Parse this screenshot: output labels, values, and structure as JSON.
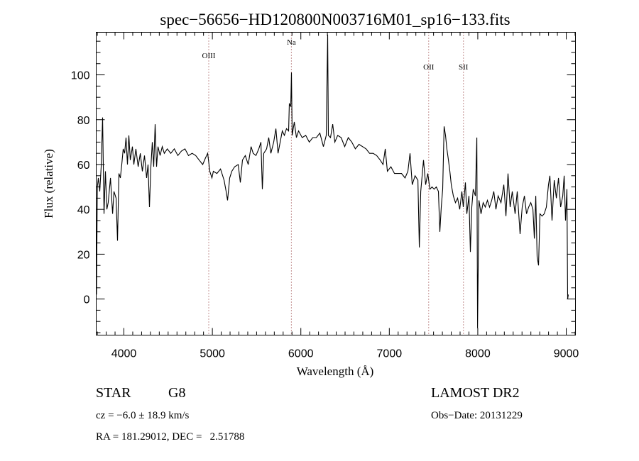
{
  "chart_data": {
    "type": "line",
    "title": "spec−56656−HD120800N003716M01_sp16−133.fits",
    "xlabel": "Wavelength (Å)",
    "ylabel": "Flux (relative)",
    "xlim": [
      3687,
      9104
    ],
    "ylim": [
      -16.1,
      119
    ],
    "xticks": [
      4000,
      5000,
      6000,
      7000,
      8000,
      9000
    ],
    "xtick_labels": [
      "4000",
      "5000",
      "6000",
      "7000",
      "8000",
      "9000"
    ],
    "yticks": [
      0,
      20,
      40,
      60,
      80,
      100
    ],
    "ytick_labels": [
      "0",
      "20",
      "40",
      "60",
      "80",
      "100"
    ],
    "grid": false,
    "lines": [
      {
        "label": "OIII",
        "wavelength": 4959
      },
      {
        "label": "Na",
        "wavelength": 5893
      },
      {
        "label": "OII",
        "wavelength": 7445
      },
      {
        "label": "SII",
        "wavelength": 7838
      }
    ],
    "line_marker_color": "#8b2a2a",
    "series": [
      {
        "name": "flux",
        "color": "#000000",
        "points": [
          [
            3690,
            2
          ],
          [
            3700,
            50
          ],
          [
            3711,
            54
          ],
          [
            3727,
            48
          ],
          [
            3743,
            59
          ],
          [
            3759,
            81
          ],
          [
            3775,
            38
          ],
          [
            3791,
            57
          ],
          [
            3807,
            40
          ],
          [
            3823,
            43
          ],
          [
            3848,
            54
          ],
          [
            3872,
            38
          ],
          [
            3888,
            48
          ],
          [
            3912,
            45
          ],
          [
            3928,
            26
          ],
          [
            3944,
            56
          ],
          [
            3960,
            54
          ],
          [
            3976,
            60
          ],
          [
            3992,
            67
          ],
          [
            4008,
            65
          ],
          [
            4024,
            72
          ],
          [
            4040,
            60
          ],
          [
            4056,
            73
          ],
          [
            4072,
            62
          ],
          [
            4096,
            68
          ],
          [
            4112,
            60
          ],
          [
            4136,
            67
          ],
          [
            4161,
            59
          ],
          [
            4185,
            65
          ],
          [
            4209,
            57
          ],
          [
            4233,
            64
          ],
          [
            4257,
            54
          ],
          [
            4273,
            60
          ],
          [
            4289,
            41
          ],
          [
            4305,
            59
          ],
          [
            4321,
            70
          ],
          [
            4337,
            59
          ],
          [
            4353,
            78
          ],
          [
            4369,
            59
          ],
          [
            4385,
            68
          ],
          [
            4409,
            64
          ],
          [
            4433,
            68
          ],
          [
            4457,
            65
          ],
          [
            4490,
            67
          ],
          [
            4530,
            65
          ],
          [
            4570,
            67
          ],
          [
            4610,
            64
          ],
          [
            4650,
            66
          ],
          [
            4690,
            67
          ],
          [
            4730,
            64
          ],
          [
            4771,
            65
          ],
          [
            4811,
            64
          ],
          [
            4851,
            62
          ],
          [
            4891,
            60
          ],
          [
            4923,
            63
          ],
          [
            4947,
            65
          ],
          [
            4971,
            57
          ],
          [
            4995,
            54
          ],
          [
            5011,
            57
          ],
          [
            5051,
            56
          ],
          [
            5092,
            58
          ],
          [
            5132,
            53
          ],
          [
            5156,
            48
          ],
          [
            5172,
            44
          ],
          [
            5196,
            54
          ],
          [
            5220,
            57
          ],
          [
            5252,
            59
          ],
          [
            5292,
            60
          ],
          [
            5316,
            52
          ],
          [
            5340,
            62
          ],
          [
            5372,
            64
          ],
          [
            5405,
            60
          ],
          [
            5437,
            68
          ],
          [
            5461,
            65
          ],
          [
            5493,
            64
          ],
          [
            5525,
            67
          ],
          [
            5549,
            70
          ],
          [
            5565,
            49
          ],
          [
            5581,
            65
          ],
          [
            5613,
            67
          ],
          [
            5637,
            72
          ],
          [
            5661,
            65
          ],
          [
            5693,
            70
          ],
          [
            5718,
            76
          ],
          [
            5742,
            65
          ],
          [
            5766,
            70
          ],
          [
            5790,
            75
          ],
          [
            5814,
            73
          ],
          [
            5838,
            76
          ],
          [
            5862,
            75
          ],
          [
            5870,
            87
          ],
          [
            5886,
            86
          ],
          [
            5894,
            101
          ],
          [
            5902,
            73
          ],
          [
            5926,
            79
          ],
          [
            5950,
            72
          ],
          [
            5974,
            75
          ],
          [
            6015,
            72
          ],
          [
            6055,
            73
          ],
          [
            6095,
            70
          ],
          [
            6135,
            72
          ],
          [
            6175,
            72
          ],
          [
            6215,
            74
          ],
          [
            6255,
            68
          ],
          [
            6287,
            73
          ],
          [
            6303,
            118
          ],
          [
            6311,
            73
          ],
          [
            6335,
            72
          ],
          [
            6360,
            78
          ],
          [
            6384,
            70
          ],
          [
            6416,
            73
          ],
          [
            6456,
            72
          ],
          [
            6496,
            68
          ],
          [
            6536,
            72
          ],
          [
            6576,
            70
          ],
          [
            6616,
            67
          ],
          [
            6657,
            69
          ],
          [
            6697,
            68
          ],
          [
            6737,
            67
          ],
          [
            6777,
            65
          ],
          [
            6817,
            65
          ],
          [
            6857,
            64
          ],
          [
            6897,
            62
          ],
          [
            6929,
            60
          ],
          [
            6954,
            67
          ],
          [
            6978,
            57
          ],
          [
            7018,
            59
          ],
          [
            7058,
            56
          ],
          [
            7098,
            56
          ],
          [
            7138,
            56
          ],
          [
            7178,
            54
          ],
          [
            7210,
            57
          ],
          [
            7234,
            65
          ],
          [
            7259,
            51
          ],
          [
            7291,
            55
          ],
          [
            7323,
            53
          ],
          [
            7339,
            23
          ],
          [
            7355,
            48
          ],
          [
            7387,
            62
          ],
          [
            7411,
            51
          ],
          [
            7435,
            56
          ],
          [
            7459,
            49
          ],
          [
            7483,
            50
          ],
          [
            7507,
            49
          ],
          [
            7531,
            50
          ],
          [
            7555,
            48
          ],
          [
            7571,
            30
          ],
          [
            7587,
            41
          ],
          [
            7603,
            49
          ],
          [
            7619,
            77
          ],
          [
            7635,
            73
          ],
          [
            7651,
            67
          ],
          [
            7668,
            62
          ],
          [
            7684,
            57
          ],
          [
            7700,
            51
          ],
          [
            7724,
            46
          ],
          [
            7748,
            43
          ],
          [
            7772,
            45
          ],
          [
            7796,
            40
          ],
          [
            7820,
            48
          ],
          [
            7836,
            41
          ],
          [
            7860,
            52
          ],
          [
            7876,
            38
          ],
          [
            7900,
            46
          ],
          [
            7916,
            21
          ],
          [
            7932,
            41
          ],
          [
            7948,
            49
          ],
          [
            7973,
            46
          ],
          [
            7989,
            72
          ],
          [
            7997,
            -13
          ],
          [
            8013,
            44
          ],
          [
            8037,
            38
          ],
          [
            8061,
            43
          ],
          [
            8085,
            41
          ],
          [
            8109,
            44
          ],
          [
            8133,
            41
          ],
          [
            8157,
            44
          ],
          [
            8181,
            48
          ],
          [
            8205,
            40
          ],
          [
            8230,
            46
          ],
          [
            8262,
            43
          ],
          [
            8294,
            51
          ],
          [
            8318,
            37
          ],
          [
            8342,
            56
          ],
          [
            8366,
            41
          ],
          [
            8390,
            48
          ],
          [
            8422,
            38
          ],
          [
            8446,
            48
          ],
          [
            8478,
            29
          ],
          [
            8502,
            41
          ],
          [
            8527,
            46
          ],
          [
            8551,
            38
          ],
          [
            8575,
            41
          ],
          [
            8599,
            43
          ],
          [
            8623,
            40
          ],
          [
            8639,
            27
          ],
          [
            8655,
            46
          ],
          [
            8671,
            19
          ],
          [
            8687,
            15
          ],
          [
            8703,
            38
          ],
          [
            8727,
            37
          ],
          [
            8751,
            38
          ],
          [
            8775,
            41
          ],
          [
            8799,
            51
          ],
          [
            8815,
            55
          ],
          [
            8839,
            35
          ],
          [
            8864,
            53
          ],
          [
            8888,
            45
          ],
          [
            8912,
            54
          ],
          [
            8936,
            41
          ],
          [
            8960,
            46
          ],
          [
            8976,
            55
          ],
          [
            8992,
            35
          ],
          [
            9008,
            49
          ],
          [
            9016,
            0
          ],
          [
            9024,
            2
          ]
        ]
      }
    ]
  },
  "info": {
    "object_class": "STAR",
    "subclass": "G8",
    "cz": "cz = −6.0 ± 18.9 km/s",
    "coords": "RA = 181.29012, DEC =   2.51788",
    "survey": "LAMOST DR2",
    "obs_date": "Obs−Date: 20131229"
  }
}
